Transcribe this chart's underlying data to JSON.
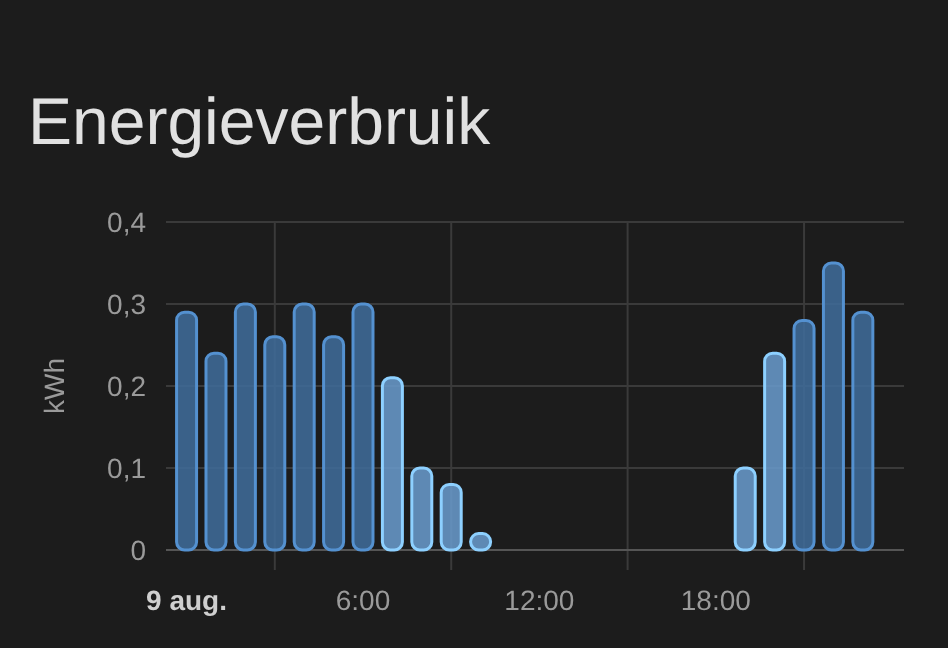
{
  "chart_data": {
    "type": "bar",
    "title": "Energieverbruik",
    "ylabel": "kWh",
    "x": [
      0,
      1,
      2,
      3,
      4,
      5,
      6,
      7,
      8,
      9,
      10,
      19,
      20,
      21,
      22,
      23
    ],
    "values": [
      0.29,
      0.24,
      0.3,
      0.26,
      0.3,
      0.26,
      0.3,
      0.21,
      0.1,
      0.08,
      0.02,
      0.1,
      0.24,
      0.28,
      0.35,
      0.29
    ],
    "colors": [
      "#3f6d9c",
      "#3f6d9c",
      "#3f6d9c",
      "#3f6d9c",
      "#3f6d9c",
      "#3f6d9c",
      "#3f6d9c",
      "#6a9ccf",
      "#6a9ccf",
      "#6a9ccf",
      "#6a9ccf",
      "#6a9ccf",
      "#6a9ccf",
      "#3f6d9c",
      "#3f6d9c",
      "#3f6d9c"
    ],
    "xlim": [
      -0.7,
      24.4
    ],
    "xticks": [
      {
        "value": 0,
        "label": "9 aug."
      },
      {
        "value": 3,
        "label": null
      },
      {
        "value": 6,
        "label": "6:00"
      },
      {
        "value": 9,
        "label": null
      },
      {
        "value": 12,
        "label": "12:00"
      },
      {
        "value": 15,
        "label": null
      },
      {
        "value": 18,
        "label": "18:00"
      },
      {
        "value": 21,
        "label": null
      }
    ],
    "ylim": [
      0,
      0.4
    ],
    "yticks": [
      0,
      {
        "value": 0.1,
        "label": "0,1"
      },
      {
        "value": 0.2,
        "label": "0,2"
      },
      {
        "value": 0.3,
        "label": "0,3"
      },
      {
        "value": 0.4,
        "label": "0,4"
      }
    ],
    "grid": true
  }
}
